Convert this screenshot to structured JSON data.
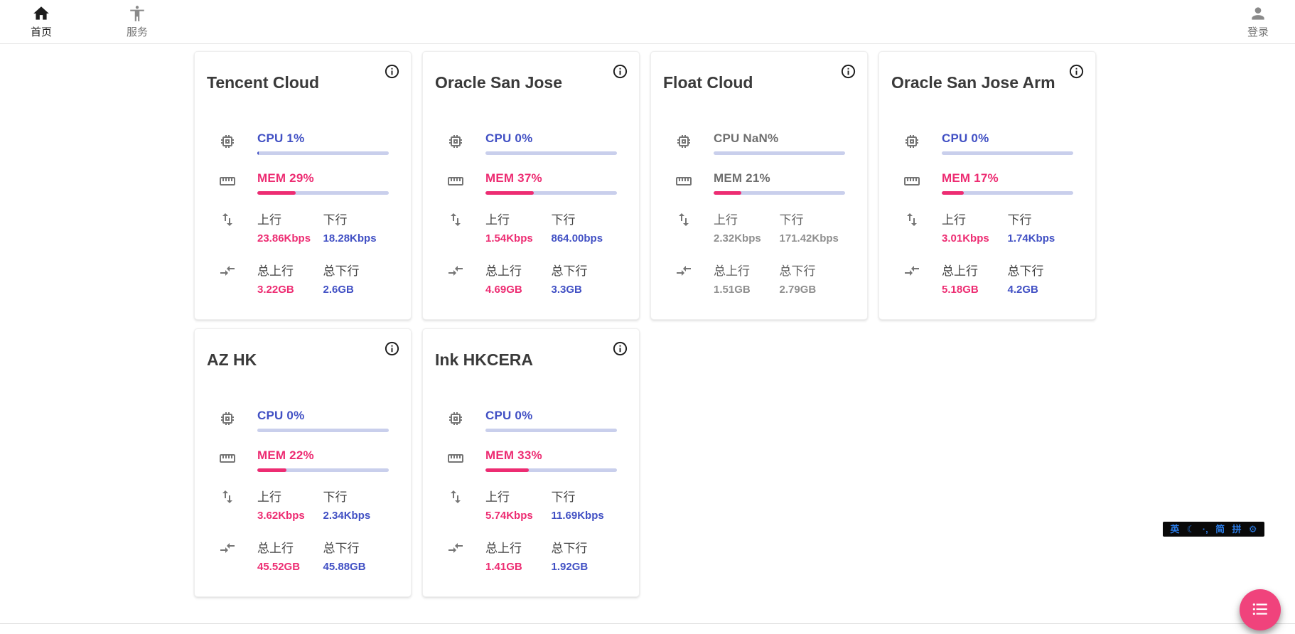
{
  "nav": {
    "home": {
      "label": "首页"
    },
    "services": {
      "label": "服务"
    },
    "login": {
      "label": "登录"
    }
  },
  "card_labels": {
    "up": "上行",
    "down": "下行",
    "total_up": "总上行",
    "total_down": "总下行"
  },
  "servers": [
    {
      "name": "Tencent Cloud",
      "offline": false,
      "cpu_text": "CPU 1%",
      "cpu_pct": 1,
      "mem_text": "MEM 29%",
      "mem_pct": 29,
      "up": "23.86Kbps",
      "down": "18.28Kbps",
      "total_up": "3.22GB",
      "total_down": "2.6GB"
    },
    {
      "name": "Oracle San Jose",
      "offline": false,
      "cpu_text": "CPU 0%",
      "cpu_pct": 0,
      "mem_text": "MEM 37%",
      "mem_pct": 37,
      "up": "1.54Kbps",
      "down": "864.00bps",
      "total_up": "4.69GB",
      "total_down": "3.3GB"
    },
    {
      "name": "Float Cloud",
      "offline": true,
      "cpu_text": "CPU NaN%",
      "cpu_pct": 0,
      "mem_text": "MEM 21%",
      "mem_pct": 21,
      "up": "2.32Kbps",
      "down": "171.42Kbps",
      "total_up": "1.51GB",
      "total_down": "2.79GB"
    },
    {
      "name": "Oracle San Jose Arm",
      "offline": false,
      "cpu_text": "CPU 0%",
      "cpu_pct": 0,
      "mem_text": "MEM 17%",
      "mem_pct": 17,
      "up": "3.01Kbps",
      "down": "1.74Kbps",
      "total_up": "5.18GB",
      "total_down": "4.2GB"
    },
    {
      "name": "AZ HK",
      "offline": false,
      "cpu_text": "CPU 0%",
      "cpu_pct": 0,
      "mem_text": "MEM 22%",
      "mem_pct": 22,
      "up": "3.62Kbps",
      "down": "2.34Kbps",
      "total_up": "45.52GB",
      "total_down": "45.88GB"
    },
    {
      "name": "Ink HKCERA",
      "offline": false,
      "cpu_text": "CPU 0%",
      "cpu_pct": 0,
      "mem_text": "MEM 33%",
      "mem_pct": 33,
      "up": "5.74Kbps",
      "down": "11.69Kbps",
      "total_up": "1.41GB",
      "total_down": "1.92GB"
    }
  ],
  "ime": {
    "items": [
      "英",
      "☾",
      "·,",
      "简",
      "拼",
      "⚙"
    ]
  },
  "colors": {
    "accent_blue": "#4150c4",
    "accent_pink": "#ed2c72",
    "bar_track": "#c9cfec",
    "fab_pink": "#f0437c",
    "ime_blue": "#2b7de9"
  }
}
